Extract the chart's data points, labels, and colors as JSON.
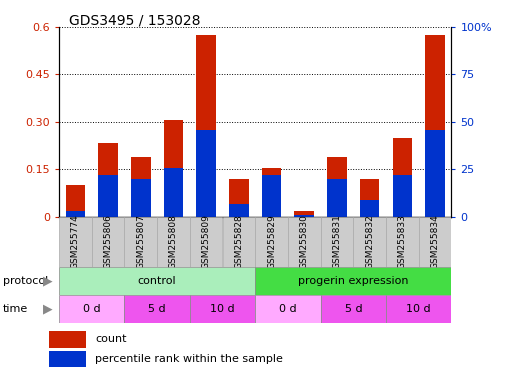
{
  "title": "GDS3495 / 153028",
  "samples": [
    "GSM255774",
    "GSM255806",
    "GSM255807",
    "GSM255808",
    "GSM255809",
    "GSM255828",
    "GSM255829",
    "GSM255830",
    "GSM255831",
    "GSM255832",
    "GSM255833",
    "GSM255834"
  ],
  "count_values": [
    0.1,
    0.235,
    0.19,
    0.305,
    0.575,
    0.12,
    0.155,
    0.02,
    0.19,
    0.12,
    0.25,
    0.575
  ],
  "percentile_values": [
    3.0,
    22.0,
    20.0,
    26.0,
    46.0,
    7.0,
    22.0,
    1.0,
    20.0,
    9.0,
    22.0,
    46.0
  ],
  "ylim_left": [
    0,
    0.6
  ],
  "ylim_right": [
    0,
    100
  ],
  "yticks_left": [
    0,
    0.15,
    0.3,
    0.45,
    0.6
  ],
  "yticks_right": [
    0,
    25,
    50,
    75,
    100
  ],
  "ytick_labels_left": [
    "0",
    "0.15",
    "0.30",
    "0.45",
    "0.6"
  ],
  "ytick_labels_right": [
    "0",
    "25",
    "50",
    "75",
    "100%"
  ],
  "bar_color_red": "#cc2200",
  "bar_color_blue": "#0033cc",
  "protocol_control": "control",
  "protocol_progerin": "progerin expression",
  "protocol_color_control": "#aaeebb",
  "protocol_color_progerin": "#44dd44",
  "time_color_0d": "#ffaaff",
  "time_color_5d": "#ee55ee",
  "time_color_10d": "#ee55ee",
  "time_labels": [
    "0 d",
    "5 d",
    "10 d",
    "0 d",
    "5 d",
    "10 d"
  ],
  "time_colors": [
    "#ffaaff",
    "#ee55ee",
    "#ee55ee",
    "#ffaaff",
    "#ee55ee",
    "#ee55ee"
  ],
  "sample_box_color": "#cccccc",
  "tick_label_color_left": "#cc2200",
  "tick_label_color_right": "#0033cc",
  "bar_width": 0.6
}
